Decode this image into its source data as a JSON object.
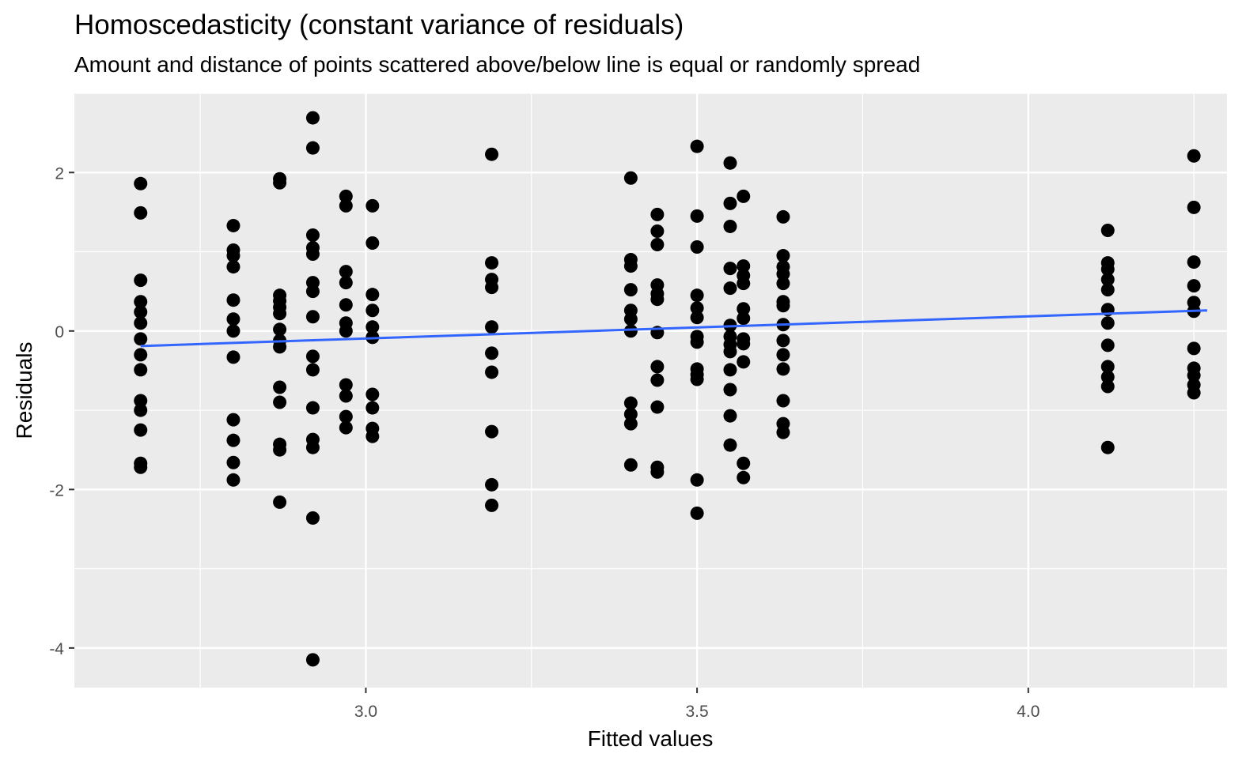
{
  "chart_data": {
    "type": "scatter",
    "title": "Homoscedasticity (constant variance of residuals)",
    "subtitle": "Amount and distance of points scattered above/below line is equal or randomly spread",
    "xlabel": "Fitted values",
    "ylabel": "Residuals",
    "xlim": [
      2.56,
      4.3
    ],
    "ylim": [
      -4.5,
      3.0
    ],
    "x_ticks": [
      3.0,
      3.5,
      4.0
    ],
    "x_tick_labels": [
      "3.0",
      "3.5",
      "4.0"
    ],
    "y_ticks": [
      -4,
      -2,
      0,
      2
    ],
    "y_tick_labels": [
      "-4",
      "-2",
      "0",
      "2"
    ],
    "grid": true,
    "legend": "none",
    "colors": {
      "panel_background": "#ebebeb",
      "grid": "#ffffff",
      "points": "#000000",
      "trend_line": "#3366ff"
    },
    "trend_line": {
      "method": "linear",
      "x": [
        2.66,
        4.27
      ],
      "y": [
        -0.19,
        0.26
      ]
    },
    "groups": [
      {
        "x": 2.66,
        "residuals": [
          1.86,
          1.49,
          0.64,
          0.37,
          0.24,
          0.1,
          -0.1,
          -0.3,
          -0.49,
          -0.88,
          -1.0,
          -1.25,
          -1.67,
          -1.72
        ]
      },
      {
        "x": 2.8,
        "residuals": [
          1.33,
          1.02,
          0.95,
          0.81,
          0.39,
          0.15,
          0.0,
          -0.33,
          -1.12,
          -1.38,
          -1.66,
          -1.88
        ]
      },
      {
        "x": 2.87,
        "residuals": [
          1.92,
          1.87,
          0.45,
          0.38,
          0.3,
          0.22,
          0.02,
          -0.12,
          -0.2,
          -0.71,
          -0.9,
          -1.43,
          -1.5,
          -2.16
        ]
      },
      {
        "x": 2.92,
        "residuals": [
          2.69,
          2.31,
          1.21,
          1.05,
          0.97,
          0.61,
          0.5,
          0.18,
          -0.32,
          -0.49,
          -0.97,
          -1.37,
          -1.47,
          -2.36,
          -4.15
        ]
      },
      {
        "x": 2.97,
        "residuals": [
          1.7,
          1.58,
          0.75,
          0.61,
          0.33,
          0.1,
          0.0,
          -0.68,
          -0.82,
          -1.08,
          -1.22
        ]
      },
      {
        "x": 3.01,
        "residuals": [
          1.58,
          1.11,
          0.46,
          0.26,
          0.05,
          -0.08,
          -0.8,
          -0.97,
          -1.23,
          -1.33
        ]
      },
      {
        "x": 3.19,
        "residuals": [
          2.23,
          0.86,
          0.65,
          0.55,
          0.05,
          -0.28,
          -0.52,
          -1.27,
          -1.94,
          -2.2
        ]
      },
      {
        "x": 3.4,
        "residuals": [
          1.93,
          0.9,
          0.82,
          0.52,
          0.26,
          0.15,
          0.0,
          -0.91,
          -1.05,
          -1.17,
          -1.69
        ]
      },
      {
        "x": 3.44,
        "residuals": [
          1.47,
          1.26,
          1.09,
          0.58,
          0.47,
          0.4,
          -0.02,
          -0.45,
          -0.62,
          -0.96,
          -1.72,
          -1.78
        ]
      },
      {
        "x": 3.5,
        "residuals": [
          2.33,
          1.45,
          1.06,
          0.45,
          0.29,
          0.17,
          -0.07,
          -0.14,
          -0.48,
          -0.55,
          -0.61,
          -1.88,
          -2.3
        ]
      },
      {
        "x": 3.55,
        "residuals": [
          2.12,
          1.61,
          1.32,
          0.79,
          0.54,
          0.07,
          -0.07,
          -0.17,
          -0.26,
          -0.49,
          -0.74,
          -1.07,
          -1.44
        ]
      },
      {
        "x": 3.57,
        "residuals": [
          1.7,
          0.82,
          0.7,
          0.6,
          0.28,
          0.16,
          -0.1,
          -0.16,
          -0.39,
          -1.67,
          -1.85
        ]
      },
      {
        "x": 3.63,
        "residuals": [
          1.44,
          0.95,
          0.81,
          0.72,
          0.6,
          0.37,
          0.32,
          0.08,
          -0.12,
          -0.3,
          -0.48,
          -0.88,
          -1.17,
          -1.28
        ]
      },
      {
        "x": 4.12,
        "residuals": [
          1.27,
          0.86,
          0.78,
          0.65,
          0.52,
          0.27,
          0.1,
          -0.18,
          -0.45,
          -0.58,
          -0.7,
          -1.47
        ]
      },
      {
        "x": 4.25,
        "residuals": [
          2.21,
          1.56,
          0.87,
          0.57,
          0.36,
          0.25,
          -0.22,
          -0.47,
          -0.56,
          -0.68,
          -0.78
        ]
      }
    ]
  }
}
